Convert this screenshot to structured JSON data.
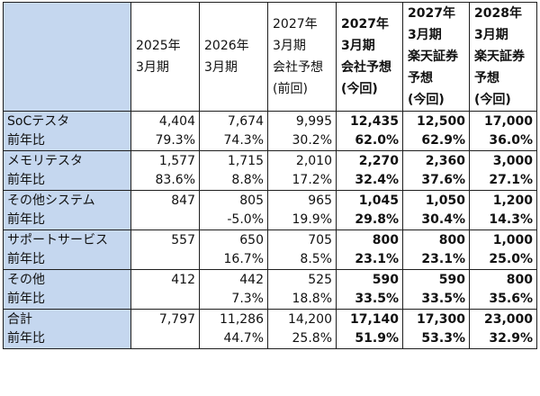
{
  "header": {
    "col1": [
      "2025年",
      "3月期"
    ],
    "col2": [
      "2026年",
      "3月期"
    ],
    "col3": [
      "2027年",
      "3月期",
      "会社予想",
      "(前回)"
    ],
    "col4": [
      "2027年",
      "3月期",
      "会社予想",
      "(今回)"
    ],
    "col5": [
      "2027年",
      "3月期",
      "楽天証券",
      "予想",
      "(今回)"
    ],
    "col6": [
      "2028年",
      "3月期",
      "楽天証券",
      "予想",
      "(今回)"
    ]
  },
  "rows": [
    {
      "label": "SoCテスタ",
      "values": [
        "4,404",
        "7,674",
        "9,995",
        "12,435",
        "12,500",
        "17,000"
      ],
      "yoy_label": "前年比",
      "yoy": [
        "79.3%",
        "74.3%",
        "30.2%",
        "62.0%",
        "62.9%",
        "36.0%"
      ]
    },
    {
      "label": "メモリテスタ",
      "values": [
        "1,577",
        "1,715",
        "2,010",
        "2,270",
        "2,360",
        "3,000"
      ],
      "yoy_label": "前年比",
      "yoy": [
        "83.6%",
        "8.8%",
        "17.2%",
        "32.4%",
        "37.6%",
        "27.1%"
      ]
    },
    {
      "label": "その他システム",
      "values": [
        "847",
        "805",
        "965",
        "1,045",
        "1,050",
        "1,200"
      ],
      "yoy_label": "前年比",
      "yoy": [
        "",
        "-5.0%",
        "19.9%",
        "29.8%",
        "30.4%",
        "14.3%"
      ]
    },
    {
      "label": "サポートサービス",
      "values": [
        "557",
        "650",
        "705",
        "800",
        "800",
        "1,000"
      ],
      "yoy_label": "前年比",
      "yoy": [
        "",
        "16.7%",
        "8.5%",
        "23.1%",
        "23.1%",
        "25.0%"
      ]
    },
    {
      "label": "その他",
      "values": [
        "412",
        "442",
        "525",
        "590",
        "590",
        "800"
      ],
      "yoy_label": "前年比",
      "yoy": [
        "",
        "7.3%",
        "18.8%",
        "33.5%",
        "33.5%",
        "35.6%"
      ]
    },
    {
      "label": "合計",
      "values": [
        "7,797",
        "11,286",
        "14,200",
        "17,140",
        "17,300",
        "23,000"
      ],
      "yoy_label": "前年比",
      "yoy": [
        "",
        "44.7%",
        "25.8%",
        "51.9%",
        "53.3%",
        "32.9%"
      ]
    }
  ],
  "colors": {
    "header_bg": "#c5d7ef",
    "border": "#1f1f1f"
  }
}
